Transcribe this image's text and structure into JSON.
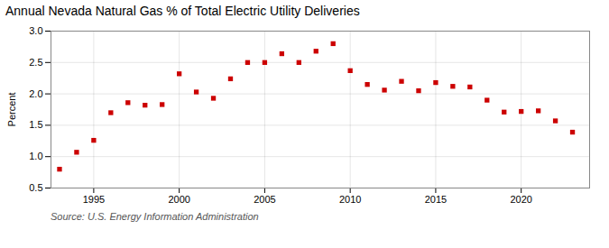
{
  "chart_data": {
    "type": "scatter",
    "title": "Annual Nevada Natural Gas % of Total Electric Utility Deliveries",
    "ylabel": "Percent",
    "annotation": "Source: U.S. Energy Information Administration",
    "x": [
      1993,
      1994,
      1995,
      1996,
      1997,
      1998,
      1999,
      2000,
      2001,
      2002,
      2003,
      2004,
      2005,
      2006,
      2007,
      2008,
      2009,
      2010,
      2011,
      2012,
      2013,
      2014,
      2015,
      2016,
      2017,
      2018,
      2019,
      2020,
      2021,
      2022,
      2023
    ],
    "values": [
      0.8,
      1.07,
      1.26,
      1.7,
      1.86,
      1.82,
      1.83,
      2.32,
      2.03,
      1.93,
      2.24,
      2.5,
      2.5,
      2.64,
      2.5,
      2.68,
      2.8,
      2.37,
      2.15,
      2.06,
      2.2,
      2.05,
      2.18,
      2.12,
      2.11,
      1.9,
      1.71,
      1.72,
      1.73,
      1.57,
      1.39
    ],
    "color": "#cc0000",
    "marker": "square",
    "xlim": [
      1992.5,
      2024
    ],
    "xticks": [
      1995,
      2000,
      2005,
      2010,
      2015,
      2020
    ],
    "ylim": [
      0.5,
      3.0
    ],
    "yticks": [
      0.5,
      {
        "value": 1.0,
        "label": "1.0"
      },
      1.5,
      {
        "value": 2.0,
        "label": "2.0"
      },
      2.5,
      {
        "value": 3.0,
        "label": "3.0"
      }
    ],
    "grid": true
  }
}
